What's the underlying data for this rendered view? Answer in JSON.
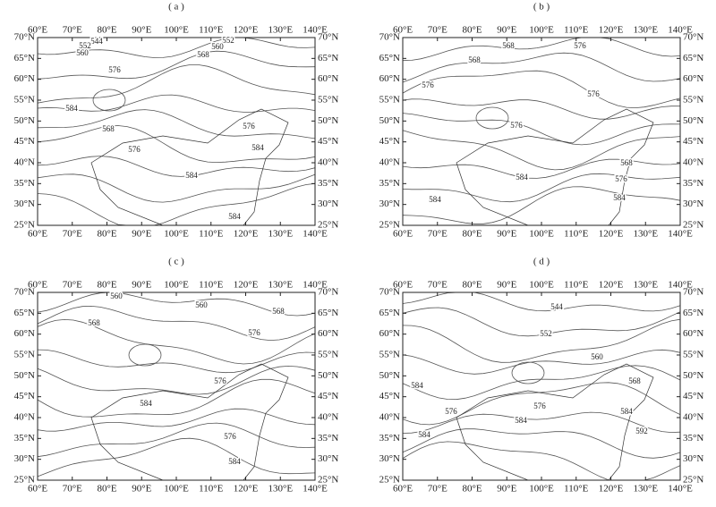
{
  "x_labels": [
    "60°E",
    "70°E",
    "80°E",
    "90°E",
    "100°E",
    "110°E",
    "120°E",
    "130°E",
    "140°E"
  ],
  "y_labels": [
    "70°N",
    "65°N",
    "60°N",
    "55°N",
    "50°N",
    "45°N",
    "40°N",
    "35°N",
    "30°N",
    "25°N"
  ],
  "panels": [
    {
      "label": "( a )",
      "contour_labels": [
        "544",
        "552",
        "560",
        "552",
        "560",
        "568",
        "576",
        "584",
        "568",
        "576",
        "576",
        "584",
        "584",
        "584"
      ]
    },
    {
      "label": "( b )",
      "contour_labels": [
        "568",
        "576",
        "568",
        "576",
        "576",
        "576",
        "568",
        "576",
        "584",
        "584",
        "584"
      ]
    },
    {
      "label": "( c )",
      "contour_labels": [
        "560",
        "560",
        "568",
        "568",
        "576",
        "576",
        "584",
        "576",
        "584"
      ]
    },
    {
      "label": "( d )",
      "contour_labels": [
        "544",
        "552",
        "560",
        "568",
        "584",
        "576",
        "576",
        "584",
        "584",
        "592",
        "584"
      ]
    }
  ]
}
